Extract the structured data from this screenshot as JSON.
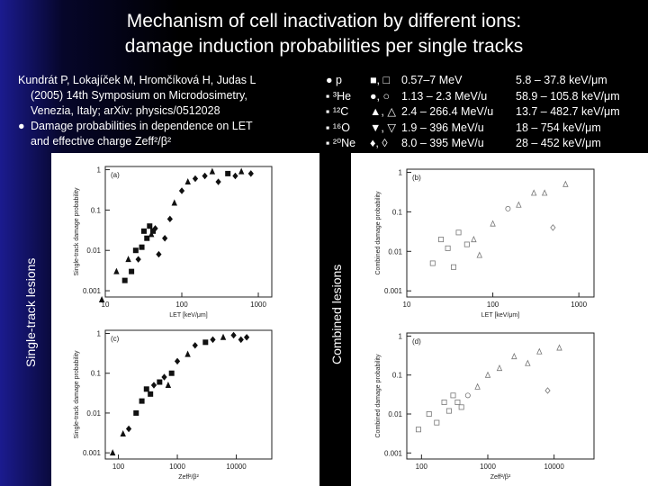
{
  "title": {
    "line1": "Mechanism of cell inactivation by different ions:",
    "line2": "damage induction probabilities per single tracks"
  },
  "reference": {
    "line1": "Kundrát P, Lokajíček M, Hromčíková H, Judas L",
    "line2": "(2005) 14th Symposium on Microdosimetry,",
    "line3": "Venezia, Italy; arXiv: physics/0512028",
    "bullet": "●",
    "line4": "Damage probabilities in dependence on LET",
    "line5": "and effective charge Zeff²/β²"
  },
  "ions": {
    "names": [
      "p",
      "³He",
      "¹²C",
      "¹⁶O",
      "²⁰Ne"
    ],
    "bullets": [
      "●",
      "▪",
      "▪",
      "▪",
      "▪"
    ],
    "symbols": [
      "■, □",
      "●, ○",
      "▲, △",
      "▼, ▽",
      "♦, ◊"
    ],
    "energies": [
      "0.57–7 MeV",
      "1.13 – 2.3 MeV/u",
      "2.4 – 266.4 MeV/u",
      "1.9 – 396 MeV/u",
      "8.0 – 395 MeV/u"
    ],
    "let_ranges": [
      "5.8 – 37.8 keV/μm",
      "58.9 – 105.8 keV/μm",
      "13.7 – 482.7 keV/μm",
      "18 – 754 keV/μm",
      "28 – 452 keV/μm"
    ]
  },
  "side_labels": {
    "left": "Single-track lesions",
    "middle": "Combined lesions"
  },
  "chart_data": [
    {
      "type": "scatter",
      "panel": "(a)",
      "ylabel": "Single-track damage probability",
      "xlabel": "LET [keV/μm]",
      "xscale": "log",
      "yscale": "log",
      "xlim": [
        10,
        1500
      ],
      "ylim": [
        0.0007,
        1.2
      ],
      "xticks": [
        "10",
        "100",
        "1000"
      ],
      "yticks": [
        "1",
        "0.1",
        "0.01",
        "0.001"
      ],
      "points": [
        {
          "x": 9,
          "y": 0.0006,
          "s": "tri"
        },
        {
          "x": 14,
          "y": 0.003,
          "s": "tri"
        },
        {
          "x": 18,
          "y": 0.0018,
          "s": "sq"
        },
        {
          "x": 20,
          "y": 0.006,
          "s": "tri"
        },
        {
          "x": 22,
          "y": 0.003,
          "s": "sq"
        },
        {
          "x": 25,
          "y": 0.01,
          "s": "sq"
        },
        {
          "x": 27,
          "y": 0.006,
          "s": "dia"
        },
        {
          "x": 30,
          "y": 0.012,
          "s": "sq"
        },
        {
          "x": 32,
          "y": 0.03,
          "s": "sq"
        },
        {
          "x": 35,
          "y": 0.02,
          "s": "sq"
        },
        {
          "x": 38,
          "y": 0.04,
          "s": "sq"
        },
        {
          "x": 40,
          "y": 0.025,
          "s": "tri"
        },
        {
          "x": 42,
          "y": 0.03,
          "s": "sq"
        },
        {
          "x": 45,
          "y": 0.035,
          "s": "dia"
        },
        {
          "x": 50,
          "y": 0.008,
          "s": "dia"
        },
        {
          "x": 60,
          "y": 0.02,
          "s": "dia"
        },
        {
          "x": 70,
          "y": 0.06,
          "s": "dia"
        },
        {
          "x": 80,
          "y": 0.15,
          "s": "tri"
        },
        {
          "x": 100,
          "y": 0.3,
          "s": "dia"
        },
        {
          "x": 120,
          "y": 0.5,
          "s": "tri"
        },
        {
          "x": 150,
          "y": 0.6,
          "s": "dia"
        },
        {
          "x": 200,
          "y": 0.7,
          "s": "dia"
        },
        {
          "x": 250,
          "y": 0.9,
          "s": "tri"
        },
        {
          "x": 300,
          "y": 0.5,
          "s": "dia"
        },
        {
          "x": 400,
          "y": 0.8,
          "s": "sq"
        },
        {
          "x": 500,
          "y": 0.7,
          "s": "dia"
        },
        {
          "x": 600,
          "y": 0.9,
          "s": "tri"
        },
        {
          "x": 800,
          "y": 0.8,
          "s": "dia"
        }
      ]
    },
    {
      "type": "scatter",
      "panel": "(b)",
      "ylabel": "Combined damage probability",
      "xlabel": "LET [keV/μm]",
      "xscale": "log",
      "yscale": "log",
      "xlim": [
        10,
        1500
      ],
      "ylim": [
        0.0007,
        1.2
      ],
      "xticks": [
        "10",
        "100",
        "1000"
      ],
      "yticks": [
        "1",
        "0.1",
        "0.01",
        "0.001"
      ],
      "points": [
        {
          "x": 20,
          "y": 0.005,
          "s": "sq"
        },
        {
          "x": 25,
          "y": 0.02,
          "s": "sq"
        },
        {
          "x": 30,
          "y": 0.012,
          "s": "sq"
        },
        {
          "x": 35,
          "y": 0.004,
          "s": "sq"
        },
        {
          "x": 40,
          "y": 0.03,
          "s": "sq"
        },
        {
          "x": 50,
          "y": 0.015,
          "s": "sq"
        },
        {
          "x": 60,
          "y": 0.02,
          "s": "tri"
        },
        {
          "x": 70,
          "y": 0.008,
          "s": "tri"
        },
        {
          "x": 100,
          "y": 0.05,
          "s": "tri"
        },
        {
          "x": 150,
          "y": 0.12,
          "s": "circ"
        },
        {
          "x": 200,
          "y": 0.15,
          "s": "tri"
        },
        {
          "x": 300,
          "y": 0.3,
          "s": "tri"
        },
        {
          "x": 400,
          "y": 0.3,
          "s": "tri"
        },
        {
          "x": 500,
          "y": 0.04,
          "s": "dia"
        },
        {
          "x": 700,
          "y": 0.5,
          "s": "tri"
        }
      ]
    },
    {
      "type": "scatter",
      "panel": "(c)",
      "ylabel": "Single-track damage probability",
      "xlabel": "Zeff²/β²",
      "xscale": "log",
      "yscale": "log",
      "xlim": [
        60,
        40000
      ],
      "ylim": [
        0.0007,
        1.2
      ],
      "xticks": [
        "100",
        "1000",
        "10000"
      ],
      "yticks": [
        "1",
        "0.1",
        "0.01",
        "0.001"
      ],
      "points": [
        {
          "x": 80,
          "y": 0.001,
          "s": "tri"
        },
        {
          "x": 120,
          "y": 0.003,
          "s": "tri"
        },
        {
          "x": 150,
          "y": 0.004,
          "s": "dia"
        },
        {
          "x": 200,
          "y": 0.01,
          "s": "sq"
        },
        {
          "x": 250,
          "y": 0.02,
          "s": "sq"
        },
        {
          "x": 300,
          "y": 0.04,
          "s": "sq"
        },
        {
          "x": 350,
          "y": 0.03,
          "s": "sq"
        },
        {
          "x": 400,
          "y": 0.05,
          "s": "dia"
        },
        {
          "x": 500,
          "y": 0.06,
          "s": "sq"
        },
        {
          "x": 600,
          "y": 0.08,
          "s": "dia"
        },
        {
          "x": 700,
          "y": 0.05,
          "s": "tri"
        },
        {
          "x": 800,
          "y": 0.1,
          "s": "sq"
        },
        {
          "x": 1000,
          "y": 0.2,
          "s": "dia"
        },
        {
          "x": 1500,
          "y": 0.3,
          "s": "tri"
        },
        {
          "x": 2000,
          "y": 0.5,
          "s": "dia"
        },
        {
          "x": 3000,
          "y": 0.6,
          "s": "sq"
        },
        {
          "x": 4000,
          "y": 0.7,
          "s": "dia"
        },
        {
          "x": 6000,
          "y": 0.8,
          "s": "tri"
        },
        {
          "x": 9000,
          "y": 0.9,
          "s": "dia"
        },
        {
          "x": 12000,
          "y": 0.7,
          "s": "dia"
        },
        {
          "x": 15000,
          "y": 0.8,
          "s": "dia"
        }
      ]
    },
    {
      "type": "scatter",
      "panel": "(d)",
      "ylabel": "Combined damage probability",
      "xlabel": "Zeff²/β²",
      "xscale": "log",
      "yscale": "log",
      "xlim": [
        60,
        40000
      ],
      "ylim": [
        0.0007,
        1.2
      ],
      "xticks": [
        "100",
        "1000",
        "10000"
      ],
      "yticks": [
        "1",
        "0.1",
        "0.01",
        "0.001"
      ],
      "points": [
        {
          "x": 90,
          "y": 0.004,
          "s": "sq"
        },
        {
          "x": 130,
          "y": 0.01,
          "s": "sq"
        },
        {
          "x": 170,
          "y": 0.006,
          "s": "sq"
        },
        {
          "x": 220,
          "y": 0.02,
          "s": "sq"
        },
        {
          "x": 260,
          "y": 0.012,
          "s": "sq"
        },
        {
          "x": 300,
          "y": 0.03,
          "s": "sq"
        },
        {
          "x": 350,
          "y": 0.02,
          "s": "sq"
        },
        {
          "x": 400,
          "y": 0.015,
          "s": "sq"
        },
        {
          "x": 500,
          "y": 0.03,
          "s": "circ"
        },
        {
          "x": 700,
          "y": 0.05,
          "s": "tri"
        },
        {
          "x": 1000,
          "y": 0.1,
          "s": "tri"
        },
        {
          "x": 1500,
          "y": 0.15,
          "s": "tri"
        },
        {
          "x": 2500,
          "y": 0.3,
          "s": "tri"
        },
        {
          "x": 4000,
          "y": 0.2,
          "s": "tri"
        },
        {
          "x": 6000,
          "y": 0.4,
          "s": "tri"
        },
        {
          "x": 8000,
          "y": 0.04,
          "s": "dia"
        },
        {
          "x": 12000,
          "y": 0.5,
          "s": "tri"
        }
      ]
    }
  ]
}
